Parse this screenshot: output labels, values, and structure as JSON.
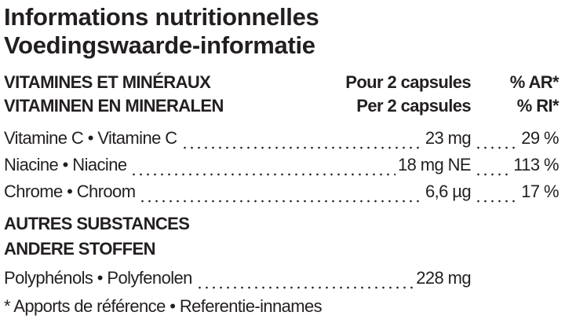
{
  "header": {
    "title_fr": "Informations nutritionnelles",
    "title_nl": "Voedingswaarde-informatie"
  },
  "vitamins": {
    "heading_fr": "VITAMINES ET MINÉRAUX",
    "heading_nl": "VITAMINEN EN MINERALEN",
    "per_fr": "Pour 2 capsules",
    "per_nl": "Per 2 capsules",
    "ref_fr": "% AR*",
    "ref_nl": "% RI*",
    "rows": [
      {
        "name": "Vitamine C • Vitamine C",
        "amount": "23 mg",
        "percent": "29 %"
      },
      {
        "name": "Niacine • Niacine",
        "amount": "18 mg NE",
        "percent": "113 %"
      },
      {
        "name": "Chrome • Chroom",
        "amount": "6,6 µg",
        "percent": "17 %"
      }
    ]
  },
  "other": {
    "heading_fr": "AUTRES SUBSTANCES",
    "heading_nl": "ANDERE STOFFEN",
    "rows": [
      {
        "name": "Polyphénols • Polyfenolen",
        "amount": "228 mg"
      }
    ]
  },
  "footnote": "* Apports de référence • Referentie-innames"
}
